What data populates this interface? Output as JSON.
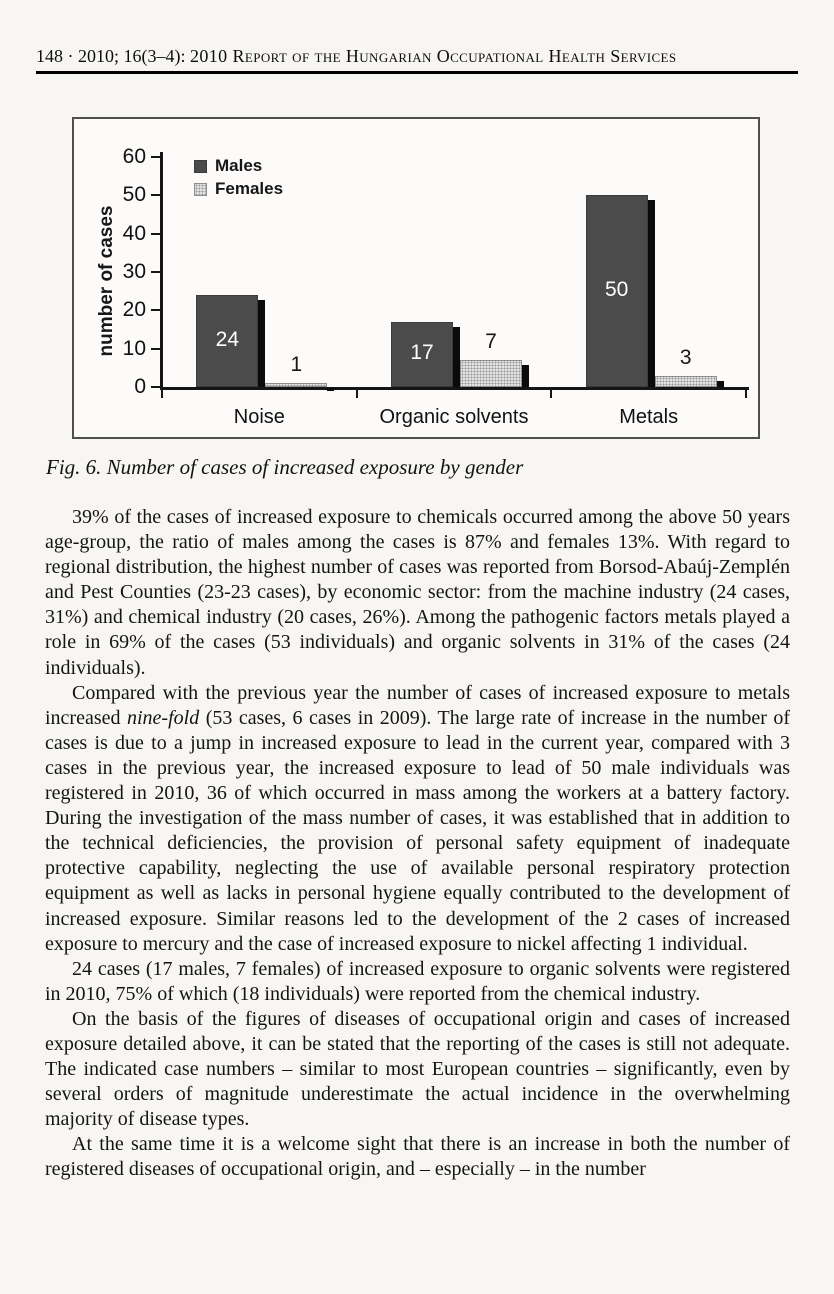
{
  "header": {
    "page_info": "148 · 2010; 16(3–4):",
    "title": "2010 Report of the Hungarian Occupational Health Services"
  },
  "figure": {
    "caption": "Fig. 6. Number of cases of increased exposure by gender"
  },
  "chart_data": {
    "type": "bar",
    "title": "",
    "categories": [
      "Noise",
      "Organic solvents",
      "Metals"
    ],
    "series": [
      {
        "name": "Males",
        "values": [
          24,
          17,
          50
        ]
      },
      {
        "name": "Females",
        "values": [
          1,
          7,
          3
        ]
      }
    ],
    "xlabel": "",
    "ylabel": "number of cases",
    "ylim": [
      0,
      60
    ],
    "ytick_step": 10,
    "grid": false,
    "legend_position": "upper-left-inside",
    "bar_labels_shown": true,
    "colors": {
      "males_bar": "#4b4b4b",
      "females_bar": "#e2e2e2",
      "shadow": "#0b0b0b",
      "male_value_label": "#ffffff",
      "female_value_label": "#161616",
      "axis": "#151515"
    }
  },
  "article": {
    "paragraphs": [
      {
        "segments": [
          {
            "text": "39% of the cases of increased exposure to chemicals occurred among the above 50 years age-group, the ratio of males among the cases is 87% and females 13%. With regard to regional distribution, the highest number of cases was reported from Borsod-Abaúj-Zemplén and Pest Counties (23-23 cases), by economic sector: from the machine industry (24 cases, 31%) and chemical industry (20 cases, 26%). Among the pathogenic factors metals played a role in 69% of the cases (53 individuals) and organic solvents in 31% of the cases (24 individuals)."
          }
        ]
      },
      {
        "segments": [
          {
            "text": "Compared with the previous year the number of cases of increased exposure to metals increased "
          },
          {
            "text": "nine-fold",
            "italic": true
          },
          {
            "text": " (53 cases, 6 cases in 2009). The large rate of increase in the number of cases is due to a jump in increased exposure to lead in the current year, compared with 3 cases in the previous year, the increased exposure to lead of 50 male individuals was registered in 2010, 36 of which occurred in mass among the workers at a battery factory. During the investigation of the mass number of cases, it was established that in addition to the technical deficiencies, the provision of personal safety equipment of inadequate protective capability, neglecting the use of available personal respiratory protection equipment as well as lacks in personal hygiene equally contributed to the development of increased exposure. Similar reasons led to the development of the 2 cases of increased exposure to mercury and the case of increased exposure to nickel affecting 1 individual."
          }
        ]
      },
      {
        "segments": [
          {
            "text": "24 cases (17 males, 7 females) of increased exposure to organic solvents were registered in 2010, 75% of which (18 individuals) were reported from the chemical industry."
          }
        ]
      },
      {
        "segments": [
          {
            "text": "On the basis of the figures of diseases of occupational origin and cases of increased exposure detailed above, it can be stated that the reporting of the cases is still not adequate. The indicated case numbers – similar to most European countries – significantly, even by several orders of magnitude underestimate the actual incidence in the overwhelming majority of disease types."
          }
        ]
      },
      {
        "segments": [
          {
            "text": "At the same time it is a welcome sight that there is an increase in both the number of registered diseases of occupational origin, and – especially – in the number"
          }
        ]
      }
    ]
  }
}
